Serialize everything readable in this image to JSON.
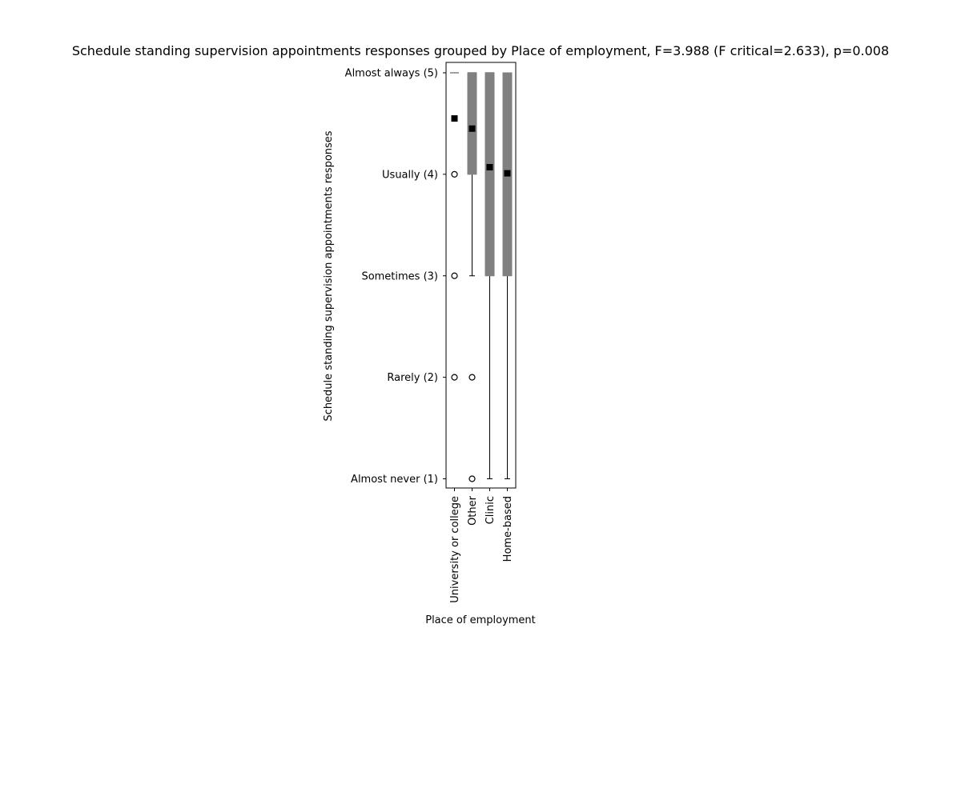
{
  "chart_data": {
    "type": "box",
    "title": "Schedule standing supervision appointments responses grouped by Place of employment, F=3.988 (F critical=2.633), p=0.008",
    "xlabel": "Place of employment",
    "ylabel": "Schedule standing supervision appointments responses",
    "ylim": [
      0.9,
      5.1
    ],
    "y_ticks": [
      {
        "value": 5,
        "label": "Almost always (5)"
      },
      {
        "value": 4,
        "label": "Usually (4)"
      },
      {
        "value": 3,
        "label": "Sometimes (3)"
      },
      {
        "value": 2,
        "label": "Rarely (2)"
      },
      {
        "value": 1,
        "label": "Almost never (1)"
      }
    ],
    "categories": [
      "University or college",
      "Other",
      "Clinic",
      "Home-based"
    ],
    "boxes": [
      {
        "category": "University or college",
        "q1": 5,
        "median": 5,
        "q3": 5,
        "whisker_low": 5,
        "whisker_high": 5,
        "mean": 4.55,
        "outliers": [
          4,
          3,
          2
        ]
      },
      {
        "category": "Other",
        "q1": 4,
        "median": 5,
        "q3": 5,
        "whisker_low": 3,
        "whisker_high": 5,
        "mean": 4.45,
        "outliers": [
          2,
          1
        ]
      },
      {
        "category": "Clinic",
        "q1": 3,
        "median": 5,
        "q3": 5,
        "whisker_low": 1,
        "whisker_high": 5,
        "mean": 4.07,
        "outliers": []
      },
      {
        "category": "Home-based",
        "q1": 3,
        "median": 4,
        "q3": 5,
        "whisker_low": 1,
        "whisker_high": 5,
        "mean": 4.01,
        "outliers": []
      }
    ],
    "box_color": "#808080",
    "mean_marker_color": "#000000",
    "grid": false,
    "legend": "none"
  }
}
